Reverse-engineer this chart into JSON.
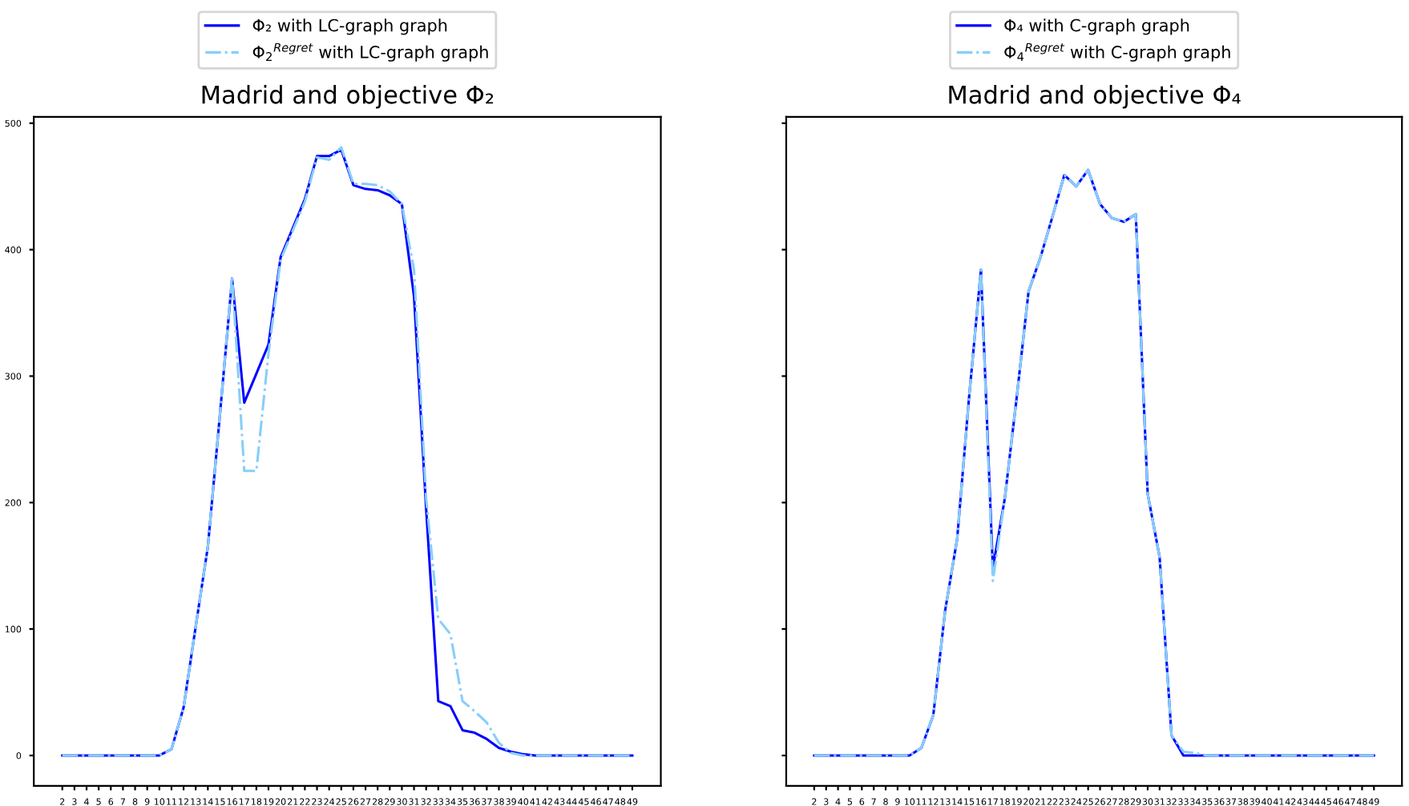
{
  "chart_data": [
    {
      "type": "line",
      "title": "Madrid and objective Φ₂",
      "categories": [
        "2",
        "3",
        "4",
        "5",
        "6",
        "7",
        "8",
        "9",
        "10",
        "11",
        "12",
        "13",
        "14",
        "15",
        "16",
        "17",
        "18",
        "19",
        "20",
        "21",
        "22",
        "23",
        "24",
        "25",
        "26",
        "27",
        "28",
        "29",
        "30",
        "31",
        "32",
        "33",
        "34",
        "35",
        "36",
        "37",
        "38",
        "39",
        "40",
        "41",
        "42",
        "43",
        "44",
        "45",
        "46",
        "47",
        "48",
        "49"
      ],
      "ylim": [
        -24,
        505
      ],
      "yticks": [
        0,
        100,
        200,
        300,
        400,
        500
      ],
      "grid": false,
      "legend": "top",
      "marker": "none",
      "series": [
        {
          "name": "Φ₂ with LC-graph graph",
          "color": "#0000ff",
          "line_style": "solid",
          "values": [
            0,
            0,
            0,
            0,
            0,
            0,
            0,
            0,
            0,
            5,
            38,
            102,
            165,
            270,
            377,
            279,
            302,
            325,
            394,
            417,
            440,
            474,
            474,
            479,
            451,
            448,
            447,
            443,
            436,
            363,
            195,
            43,
            39,
            20,
            18,
            13,
            6,
            3,
            1,
            0,
            0,
            0,
            0,
            0,
            0,
            0,
            0,
            0
          ]
        },
        {
          "name": "Φ$_{2}$$^{Regret}$ with LC-graph graph",
          "color": "#87cefa",
          "line_style": "dashdot",
          "values": [
            0,
            0,
            0,
            0,
            0,
            0,
            0,
            0,
            0,
            5,
            38,
            102,
            165,
            270,
            379,
            225,
            225,
            318,
            392,
            415,
            438,
            473,
            471,
            481,
            452,
            452,
            451,
            446,
            436,
            384,
            203,
            108,
            96,
            43,
            35,
            26,
            10,
            2,
            0,
            0,
            0,
            0,
            0,
            0,
            0,
            0,
            0,
            0
          ]
        }
      ]
    },
    {
      "type": "line",
      "title": "Madrid and objective Φ₄",
      "categories": [
        "2",
        "3",
        "4",
        "5",
        "6",
        "7",
        "8",
        "9",
        "10",
        "11",
        "12",
        "13",
        "14",
        "15",
        "16",
        "17",
        "18",
        "19",
        "20",
        "21",
        "22",
        "23",
        "24",
        "25",
        "26",
        "27",
        "28",
        "29",
        "30",
        "31",
        "32",
        "33",
        "34",
        "35",
        "36",
        "37",
        "38",
        "39",
        "40",
        "41",
        "42",
        "43",
        "44",
        "45",
        "46",
        "47",
        "48",
        "49"
      ],
      "ylim": [
        -24,
        505
      ],
      "yticks": [
        0,
        100,
        200,
        300,
        400,
        500
      ],
      "tick_labels": "x",
      "grid": false,
      "legend": "top",
      "marker": "none",
      "series": [
        {
          "name": "Φ₄ with C-graph graph",
          "color": "#0000ff",
          "line_style": "solid",
          "values": [
            0,
            0,
            0,
            0,
            0,
            0,
            0,
            0,
            0,
            6,
            32,
            115,
            171,
            283,
            384,
            148,
            203,
            283,
            367,
            394,
            426,
            459,
            450,
            463,
            436,
            425,
            422,
            428,
            207,
            157,
            16,
            0,
            0,
            0,
            0,
            0,
            0,
            0,
            0,
            0,
            0,
            0,
            0,
            0,
            0,
            0,
            0,
            0
          ]
        },
        {
          "name": "Φ$_{4}$$^{Regret}$ with C-graph graph",
          "color": "#87cefa",
          "line_style": "dashdot",
          "values": [
            0,
            0,
            0,
            0,
            0,
            0,
            0,
            0,
            0,
            6,
            32,
            115,
            171,
            283,
            384,
            138,
            203,
            283,
            367,
            394,
            426,
            459,
            450,
            463,
            436,
            425,
            422,
            428,
            207,
            157,
            16,
            3,
            2,
            0,
            0,
            0,
            0,
            0,
            0,
            0,
            0,
            0,
            0,
            0,
            0,
            0,
            0,
            0
          ]
        }
      ]
    }
  ]
}
